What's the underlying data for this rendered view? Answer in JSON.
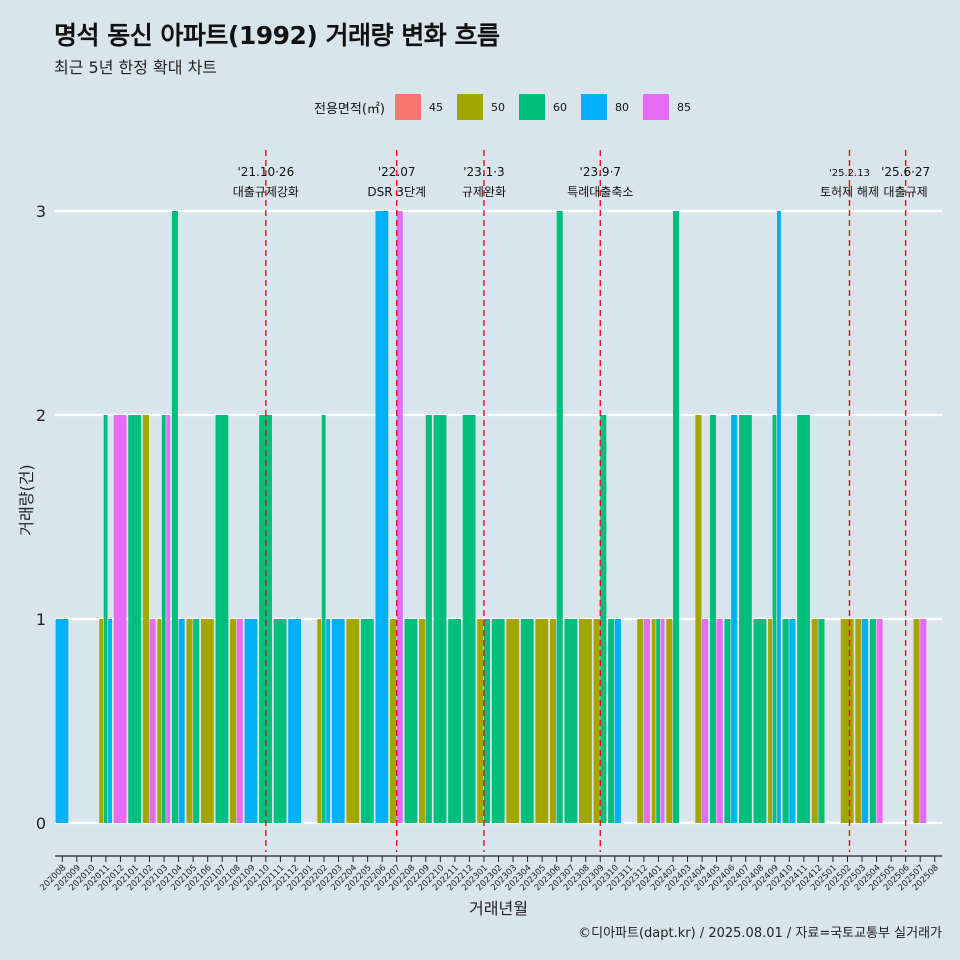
{
  "title": "명석 동신 아파트(1992) 거래량 변화 흐름",
  "subtitle": "최근 5년 한정 확대 차트",
  "caption": "©디아파트(dapt.kr) / 2025.08.01 / 자료=국토교통부 실거래가",
  "legend": {
    "title": "전용면적(㎡)",
    "items": [
      {
        "label": "45",
        "color": "#f8766d"
      },
      {
        "label": "50",
        "color": "#a3a500"
      },
      {
        "label": "60",
        "color": "#00bf7d"
      },
      {
        "label": "80",
        "color": "#00b0f6"
      },
      {
        "label": "85",
        "color": "#e76bf3"
      }
    ]
  },
  "chart_data": {
    "type": "bar",
    "xlabel": "거래년월",
    "ylabel": "거래량(건)",
    "ylim": [
      0,
      3
    ],
    "yticks": [
      "0",
      "1",
      "2",
      "3"
    ],
    "grid": true,
    "legend_position": "top",
    "categories": [
      "202008",
      "202009",
      "202010",
      "202011",
      "202012",
      "202101",
      "202102",
      "202103",
      "202104",
      "202105",
      "202106",
      "202107",
      "202108",
      "202109",
      "202110",
      "202111",
      "202112",
      "202201",
      "202202",
      "202203",
      "202204",
      "202205",
      "202206",
      "202207",
      "202208",
      "202209",
      "202210",
      "202211",
      "202212",
      "202301",
      "202302",
      "202303",
      "202304",
      "202305",
      "202306",
      "202307",
      "202308",
      "202309",
      "202310",
      "202311",
      "202312",
      "202401",
      "202402",
      "202403",
      "202404",
      "202405",
      "202406",
      "202407",
      "202408",
      "202409",
      "202410",
      "202411",
      "202412",
      "202501",
      "202502",
      "202503",
      "202504",
      "202505",
      "202506",
      "202507",
      "202508"
    ],
    "bars": [
      [
        "202008",
        "80",
        1
      ],
      [
        "202011",
        "50",
        1
      ],
      [
        "202011",
        "60",
        2
      ],
      [
        "202011",
        "80",
        1
      ],
      [
        "202012",
        "85",
        2
      ],
      [
        "202101",
        "60",
        2
      ],
      [
        "202102",
        "50",
        2
      ],
      [
        "202102",
        "85",
        1
      ],
      [
        "202103",
        "50",
        1
      ],
      [
        "202103",
        "60",
        2
      ],
      [
        "202103",
        "85",
        2
      ],
      [
        "202104",
        "60",
        3
      ],
      [
        "202104",
        "80",
        1
      ],
      [
        "202105",
        "50",
        1
      ],
      [
        "202105",
        "60",
        1
      ],
      [
        "202106",
        "50",
        1
      ],
      [
        "202107",
        "60",
        2
      ],
      [
        "202108",
        "50",
        1
      ],
      [
        "202108",
        "85",
        1
      ],
      [
        "202109",
        "80",
        1
      ],
      [
        "202110",
        "60",
        2
      ],
      [
        "202111",
        "60",
        1
      ],
      [
        "202112",
        "80",
        1
      ],
      [
        "202202",
        "50",
        1
      ],
      [
        "202202",
        "60",
        2
      ],
      [
        "202202",
        "80",
        1
      ],
      [
        "202203",
        "80",
        1
      ],
      [
        "202204",
        "50",
        1
      ],
      [
        "202205",
        "60",
        1
      ],
      [
        "202206",
        "80",
        3
      ],
      [
        "202207",
        "50",
        1
      ],
      [
        "202207",
        "85",
        3
      ],
      [
        "202208",
        "60",
        1
      ],
      [
        "202209",
        "50",
        1
      ],
      [
        "202209",
        "60",
        2
      ],
      [
        "202210",
        "60",
        2
      ],
      [
        "202211",
        "60",
        1
      ],
      [
        "202212",
        "60",
        2
      ],
      [
        "202301",
        "50",
        1
      ],
      [
        "202301",
        "60",
        1
      ],
      [
        "202302",
        "60",
        1
      ],
      [
        "202303",
        "50",
        1
      ],
      [
        "202304",
        "60",
        1
      ],
      [
        "202305",
        "50",
        1
      ],
      [
        "202306",
        "50",
        1
      ],
      [
        "202306",
        "60",
        3
      ],
      [
        "202307",
        "60",
        1
      ],
      [
        "202308",
        "50",
        1
      ],
      [
        "202309",
        "50",
        1
      ],
      [
        "202309",
        "60",
        2
      ],
      [
        "202310",
        "60",
        1
      ],
      [
        "202310",
        "80",
        1
      ],
      [
        "202312",
        "50",
        1
      ],
      [
        "202312",
        "85",
        1
      ],
      [
        "202401",
        "50",
        1
      ],
      [
        "202401",
        "60",
        1
      ],
      [
        "202401",
        "85",
        1
      ],
      [
        "202402",
        "50",
        1
      ],
      [
        "202402",
        "60",
        3
      ],
      [
        "202404",
        "50",
        2
      ],
      [
        "202404",
        "85",
        1
      ],
      [
        "202405",
        "60",
        2
      ],
      [
        "202405",
        "85",
        1
      ],
      [
        "202406",
        "60",
        1
      ],
      [
        "202406",
        "80",
        2
      ],
      [
        "202407",
        "60",
        2
      ],
      [
        "202408",
        "60",
        1
      ],
      [
        "202409",
        "50",
        1
      ],
      [
        "202409",
        "60",
        2
      ],
      [
        "202409",
        "80",
        3
      ],
      [
        "202410",
        "60",
        1
      ],
      [
        "202410",
        "80",
        1
      ],
      [
        "202411",
        "60",
        2
      ],
      [
        "202412",
        "50",
        1
      ],
      [
        "202412",
        "60",
        1
      ],
      [
        "202502",
        "50",
        1
      ],
      [
        "202503",
        "50",
        1
      ],
      [
        "202503",
        "80",
        1
      ],
      [
        "202504",
        "60",
        1
      ],
      [
        "202504",
        "85",
        1
      ],
      [
        "202507",
        "50",
        1
      ],
      [
        "202507",
        "85",
        1
      ]
    ],
    "events": [
      {
        "month": "202110",
        "date": "'21.10·26",
        "label": "대출규제강화"
      },
      {
        "month": "202207",
        "date": "'22.07",
        "label": "DSR 3단계"
      },
      {
        "month": "202301",
        "date": "'23.1·3",
        "label": "규제완화"
      },
      {
        "month": "202309",
        "date": "'23.9·7",
        "label": "특례대출축소"
      },
      {
        "month": "202502",
        "date": "'25.2.13",
        "label": "토허제 해제"
      },
      {
        "month": "202506",
        "date": "'25.6·27",
        "label": "대출규제"
      }
    ]
  }
}
